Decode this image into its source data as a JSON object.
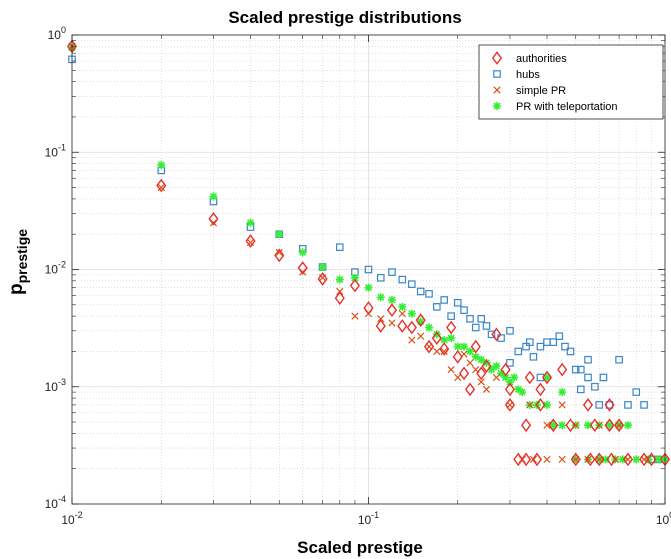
{
  "chart_data": {
    "type": "scatter",
    "title": "Scaled prestige distributions",
    "xlabel": "Scaled prestige",
    "ylabel_main": "p",
    "ylabel_sub": "prestige",
    "xscale": "log",
    "yscale": "log",
    "xlim": [
      0.01,
      1
    ],
    "ylim": [
      0.0001,
      1
    ],
    "x_ticks": [
      {
        "base": "10",
        "exp": "-2"
      },
      {
        "base": "10",
        "exp": "-1"
      },
      {
        "base": "10",
        "exp": "0"
      }
    ],
    "y_ticks": [
      {
        "base": "10",
        "exp": "-4"
      },
      {
        "base": "10",
        "exp": "-3"
      },
      {
        "base": "10",
        "exp": "-2"
      },
      {
        "base": "10",
        "exp": "-1"
      },
      {
        "base": "10",
        "exp": "0"
      }
    ],
    "grid": true,
    "legend_position": "top-right",
    "series": [
      {
        "name": "authorities",
        "marker": "diamond",
        "color": "#e8302a",
        "points": [
          [
            0.01,
            0.8
          ],
          [
            0.02,
            0.052
          ],
          [
            0.03,
            0.027
          ],
          [
            0.04,
            0.0175
          ],
          [
            0.05,
            0.0132
          ],
          [
            0.06,
            0.0103
          ],
          [
            0.07,
            0.0083
          ],
          [
            0.08,
            0.0057
          ],
          [
            0.09,
            0.0073
          ],
          [
            0.1,
            0.0047
          ],
          [
            0.11,
            0.0033
          ],
          [
            0.12,
            0.0045
          ],
          [
            0.13,
            0.0033
          ],
          [
            0.14,
            0.0032
          ],
          [
            0.15,
            0.0037
          ],
          [
            0.16,
            0.0022
          ],
          [
            0.17,
            0.0026
          ],
          [
            0.18,
            0.0021
          ],
          [
            0.19,
            0.0032
          ],
          [
            0.2,
            0.0018
          ],
          [
            0.21,
            0.0013
          ],
          [
            0.22,
            0.00095
          ],
          [
            0.23,
            0.0022
          ],
          [
            0.24,
            0.0013
          ],
          [
            0.25,
            0.0015
          ],
          [
            0.27,
            0.0028
          ],
          [
            0.29,
            0.0014
          ],
          [
            0.3,
            0.00095
          ],
          [
            0.35,
            0.0012
          ],
          [
            0.38,
            0.00095
          ],
          [
            0.4,
            0.0012
          ],
          [
            0.45,
            0.0014
          ],
          [
            0.32,
            0.00024
          ],
          [
            0.34,
            0.00024
          ],
          [
            0.37,
            0.00024
          ],
          [
            0.5,
            0.00024
          ],
          [
            0.56,
            0.00024
          ],
          [
            0.6,
            0.00024
          ],
          [
            0.66,
            0.00024
          ],
          [
            0.75,
            0.00024
          ],
          [
            0.9,
            0.00024
          ],
          [
            0.34,
            0.00047
          ],
          [
            0.42,
            0.00047
          ],
          [
            0.48,
            0.00047
          ],
          [
            0.58,
            0.00047
          ],
          [
            0.65,
            0.00047
          ],
          [
            0.7,
            0.00047
          ],
          [
            0.3,
            0.0007
          ],
          [
            0.38,
            0.0007
          ],
          [
            0.55,
            0.0007
          ],
          [
            0.65,
            0.0007
          ],
          [
            0.85,
            0.00024
          ],
          [
            1.0,
            0.00024
          ]
        ]
      },
      {
        "name": "hubs",
        "marker": "square",
        "color": "#3a86c6",
        "points": [
          [
            0.01,
            0.62
          ],
          [
            0.02,
            0.07
          ],
          [
            0.03,
            0.038
          ],
          [
            0.04,
            0.023
          ],
          [
            0.05,
            0.02
          ],
          [
            0.06,
            0.015
          ],
          [
            0.07,
            0.0105
          ],
          [
            0.08,
            0.0155
          ],
          [
            0.09,
            0.0095
          ],
          [
            0.1,
            0.01
          ],
          [
            0.11,
            0.0085
          ],
          [
            0.12,
            0.0095
          ],
          [
            0.13,
            0.0082
          ],
          [
            0.14,
            0.0075
          ],
          [
            0.15,
            0.0065
          ],
          [
            0.16,
            0.0062
          ],
          [
            0.17,
            0.0048
          ],
          [
            0.18,
            0.0055
          ],
          [
            0.19,
            0.004
          ],
          [
            0.2,
            0.0052
          ],
          [
            0.21,
            0.0045
          ],
          [
            0.22,
            0.0038
          ],
          [
            0.23,
            0.0032
          ],
          [
            0.24,
            0.0038
          ],
          [
            0.25,
            0.0033
          ],
          [
            0.26,
            0.0028
          ],
          [
            0.28,
            0.0026
          ],
          [
            0.3,
            0.003
          ],
          [
            0.32,
            0.002
          ],
          [
            0.34,
            0.0022
          ],
          [
            0.36,
            0.0018
          ],
          [
            0.38,
            0.0022
          ],
          [
            0.4,
            0.0024
          ],
          [
            0.42,
            0.0024
          ],
          [
            0.44,
            0.0027
          ],
          [
            0.46,
            0.0022
          ],
          [
            0.48,
            0.002
          ],
          [
            0.5,
            0.0014
          ],
          [
            0.52,
            0.0014
          ],
          [
            0.55,
            0.0012
          ],
          [
            0.58,
            0.001
          ],
          [
            0.6,
            0.0007
          ],
          [
            0.62,
            0.0012
          ],
          [
            0.65,
            0.0007
          ],
          [
            0.7,
            0.0017
          ],
          [
            0.75,
            0.0007
          ],
          [
            0.8,
            0.0009
          ],
          [
            0.85,
            0.0007
          ],
          [
            0.9,
            0.00024
          ],
          [
            0.95,
            0.00024
          ],
          [
            0.35,
            0.0024
          ],
          [
            0.3,
            0.0016
          ],
          [
            0.52,
            0.00095
          ],
          [
            0.55,
            0.0017
          ],
          [
            0.38,
            0.0012
          ]
        ]
      },
      {
        "name": "simple PR",
        "marker": "x",
        "color": "#d95319",
        "points": [
          [
            0.01,
            0.8
          ],
          [
            0.02,
            0.05
          ],
          [
            0.03,
            0.025
          ],
          [
            0.04,
            0.017
          ],
          [
            0.05,
            0.014
          ],
          [
            0.06,
            0.0095
          ],
          [
            0.07,
            0.0085
          ],
          [
            0.08,
            0.0065
          ],
          [
            0.09,
            0.004
          ],
          [
            0.1,
            0.0042
          ],
          [
            0.11,
            0.0038
          ],
          [
            0.12,
            0.0035
          ],
          [
            0.13,
            0.0042
          ],
          [
            0.14,
            0.0025
          ],
          [
            0.15,
            0.0027
          ],
          [
            0.16,
            0.0022
          ],
          [
            0.17,
            0.002
          ],
          [
            0.18,
            0.002
          ],
          [
            0.19,
            0.0014
          ],
          [
            0.2,
            0.0012
          ],
          [
            0.21,
            0.0019
          ],
          [
            0.22,
            0.0016
          ],
          [
            0.23,
            0.0014
          ],
          [
            0.24,
            0.0011
          ],
          [
            0.25,
            0.00095
          ],
          [
            0.27,
            0.0012
          ],
          [
            0.3,
            0.0007
          ],
          [
            0.33,
            0.00024
          ],
          [
            0.36,
            0.00024
          ],
          [
            0.4,
            0.00024
          ],
          [
            0.45,
            0.00024
          ],
          [
            0.5,
            0.00024
          ],
          [
            0.55,
            0.00024
          ],
          [
            0.6,
            0.00024
          ],
          [
            0.68,
            0.00024
          ],
          [
            0.75,
            0.00024
          ],
          [
            0.85,
            0.00024
          ],
          [
            0.4,
            0.00047
          ],
          [
            0.5,
            0.00047
          ],
          [
            0.6,
            0.00047
          ],
          [
            0.7,
            0.00047
          ],
          [
            0.35,
            0.0007
          ],
          [
            0.45,
            0.0007
          ]
        ]
      },
      {
        "name": "PR with teleportation",
        "marker": "asterisk",
        "color": "#33ee33",
        "points": [
          [
            0.01,
            0.78
          ],
          [
            0.02,
            0.078
          ],
          [
            0.03,
            0.042
          ],
          [
            0.04,
            0.025
          ],
          [
            0.05,
            0.02
          ],
          [
            0.06,
            0.014
          ],
          [
            0.07,
            0.0105
          ],
          [
            0.08,
            0.0082
          ],
          [
            0.09,
            0.0085
          ],
          [
            0.1,
            0.007
          ],
          [
            0.11,
            0.0058
          ],
          [
            0.12,
            0.0055
          ],
          [
            0.13,
            0.0048
          ],
          [
            0.14,
            0.0042
          ],
          [
            0.15,
            0.0036
          ],
          [
            0.16,
            0.0032
          ],
          [
            0.17,
            0.0028
          ],
          [
            0.18,
            0.0025
          ],
          [
            0.19,
            0.0026
          ],
          [
            0.2,
            0.0022
          ],
          [
            0.21,
            0.0022
          ],
          [
            0.22,
            0.002
          ],
          [
            0.23,
            0.0018
          ],
          [
            0.24,
            0.0017
          ],
          [
            0.25,
            0.0016
          ],
          [
            0.26,
            0.0014
          ],
          [
            0.27,
            0.0015
          ],
          [
            0.28,
            0.0013
          ],
          [
            0.29,
            0.0012
          ],
          [
            0.3,
            0.0011
          ],
          [
            0.31,
            0.0012
          ],
          [
            0.32,
            0.00095
          ],
          [
            0.33,
            0.0009
          ],
          [
            0.35,
            0.0007
          ],
          [
            0.37,
            0.0007
          ],
          [
            0.4,
            0.0007
          ],
          [
            0.42,
            0.00047
          ],
          [
            0.45,
            0.00047
          ],
          [
            0.5,
            0.00047
          ],
          [
            0.55,
            0.00047
          ],
          [
            0.6,
            0.00047
          ],
          [
            0.65,
            0.00047
          ],
          [
            0.7,
            0.00047
          ],
          [
            0.75,
            0.00047
          ],
          [
            0.5,
            0.00024
          ],
          [
            0.55,
            0.00024
          ],
          [
            0.6,
            0.00024
          ],
          [
            0.63,
            0.00024
          ],
          [
            0.68,
            0.00024
          ],
          [
            0.72,
            0.00024
          ],
          [
            0.8,
            0.00024
          ],
          [
            0.88,
            0.00024
          ],
          [
            0.95,
            0.00024
          ],
          [
            1.0,
            0.00024
          ],
          [
            0.4,
            0.0012
          ],
          [
            0.45,
            0.0009
          ]
        ]
      }
    ]
  }
}
